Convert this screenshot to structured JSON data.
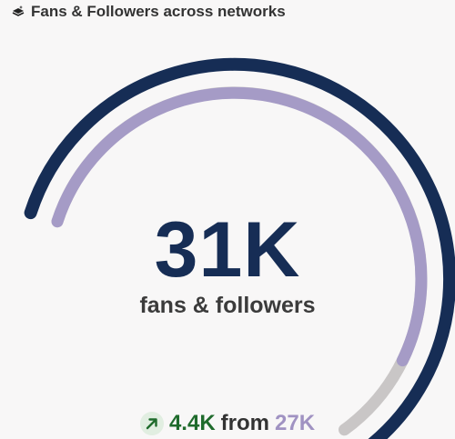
{
  "header": {
    "title": "Fans & Followers across networks",
    "icon": "layers-icon"
  },
  "gauge": {
    "value_label": "31K",
    "unit_label": "fans & followers",
    "current_fill_fraction": 0.87,
    "colors": {
      "outer_arc": "#162d55",
      "inner_fill": "#a59bc6",
      "inner_track": "#c9c6c6"
    }
  },
  "footer": {
    "trend_icon": "arrow-up-right-icon",
    "change": "4.4K",
    "from_label": "from",
    "previous": "27K",
    "colors": {
      "change": "#1f6b2c",
      "previous": "#a092c2"
    }
  }
}
